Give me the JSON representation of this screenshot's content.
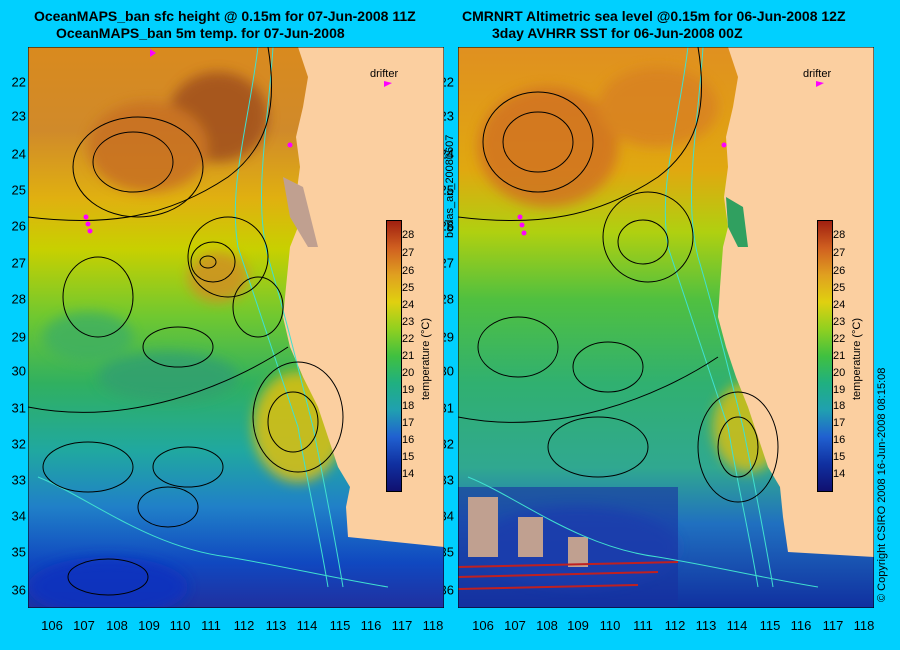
{
  "left_panel": {
    "title_line1": "OceanMAPS_ban sfc height @ 0.15m for 07-Jun-2008 11Z",
    "title_line2": "OceanMAPS_ban 5m temp. for 07-Jun-2008",
    "drifter_label": "drifter",
    "colorbar_title": "temperature (°C)"
  },
  "right_panel": {
    "title_line1": "CMRNRT Altimetric sea level  @0.15m  for 06-Jun-2008 12Z",
    "title_line2": "3day AVHRR SST for 06-Jun-2008 00Z",
    "drifter_label": "drifter",
    "colorbar_title": "temperature (°C)"
  },
  "latitude_ticks": [
    "22",
    "23",
    "24",
    "25",
    "26",
    "27",
    "28",
    "29",
    "30",
    "31",
    "32",
    "33",
    "34",
    "35",
    "36"
  ],
  "longitude_ticks": [
    "106",
    "107",
    "108",
    "109",
    "110",
    "111",
    "112",
    "113",
    "114",
    "115",
    "116",
    "117",
    "118"
  ],
  "colorbar_ticks": [
    "28",
    "27",
    "26",
    "25",
    "24",
    "23",
    "22",
    "21",
    "20",
    "19",
    "18",
    "17",
    "16",
    "15",
    "14"
  ],
  "center_vertical_label": "bodas_an_20080607",
  "copyright_label": "© Copyright CSIRO 2008    16-Jun-2008 08:15:08",
  "colors": {
    "background": "#00d0ff",
    "land": "#fbcfa0",
    "contour": "#000000",
    "bathymetry": "#40e0d0",
    "drifter": "#ff00ff"
  },
  "map_data": {
    "lon_range": [
      105.5,
      118.2
    ],
    "lat_range": [
      21.3,
      36.6
    ],
    "temperature_range_celsius": [
      14,
      28
    ]
  }
}
